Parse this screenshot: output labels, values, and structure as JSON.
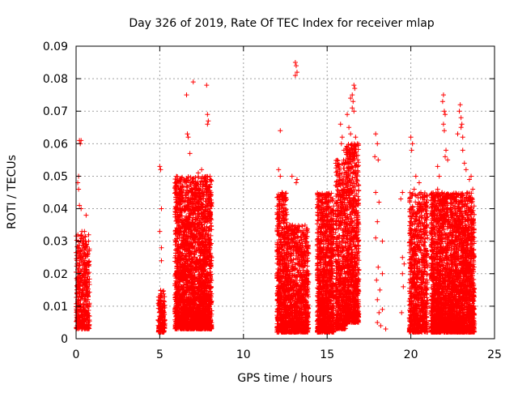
{
  "chart_data": {
    "type": "scatter",
    "title": "Day 326 of 2019, Rate Of TEC Index for receiver mlap",
    "xlabel": "GPS time / hours",
    "ylabel": "ROTI / TECUs",
    "xlim": [
      0,
      25
    ],
    "ylim": [
      0,
      0.09
    ],
    "xticks": [
      "0",
      "5",
      "10",
      "15",
      "20",
      "25"
    ],
    "yticks": [
      "0",
      "0.01",
      "0.02",
      "0.03",
      "0.04",
      "0.05",
      "0.06",
      "0.07",
      "0.08",
      "0.09"
    ],
    "grid": true,
    "marker": "+",
    "color": "#ff0000",
    "series": [
      {
        "points": [
          [
            0.1,
            0.048
          ],
          [
            0.15,
            0.05
          ],
          [
            0.2,
            0.061
          ],
          [
            0.25,
            0.06
          ],
          [
            0.3,
            0.061
          ],
          [
            0.15,
            0.046
          ],
          [
            0.2,
            0.041
          ],
          [
            0.3,
            0.04
          ],
          [
            0.35,
            0.033
          ],
          [
            0.4,
            0.031
          ],
          [
            0.5,
            0.033
          ],
          [
            0.5,
            0.028
          ],
          [
            0.6,
            0.038
          ],
          [
            0.6,
            0.015
          ],
          [
            0.7,
            0.01
          ],
          [
            5.0,
            0.053
          ],
          [
            5.05,
            0.052
          ],
          [
            5.1,
            0.04
          ],
          [
            5.0,
            0.033
          ],
          [
            5.1,
            0.028
          ],
          [
            5.1,
            0.024
          ],
          [
            6.6,
            0.075
          ],
          [
            6.65,
            0.063
          ],
          [
            6.7,
            0.062
          ],
          [
            7.0,
            0.079
          ],
          [
            7.8,
            0.078
          ],
          [
            7.85,
            0.069
          ],
          [
            7.9,
            0.067
          ],
          [
            7.85,
            0.066
          ],
          [
            6.8,
            0.057
          ],
          [
            7.3,
            0.051
          ],
          [
            7.5,
            0.052
          ],
          [
            8.0,
            0.05
          ],
          [
            12.2,
            0.064
          ],
          [
            12.1,
            0.052
          ],
          [
            12.2,
            0.05
          ],
          [
            12.3,
            0.045
          ],
          [
            12.9,
            0.05
          ],
          [
            13.2,
            0.049
          ],
          [
            13.15,
            0.048
          ],
          [
            13.1,
            0.085
          ],
          [
            13.15,
            0.084
          ],
          [
            13.2,
            0.082
          ],
          [
            13.1,
            0.081
          ],
          [
            15.8,
            0.066
          ],
          [
            15.9,
            0.062
          ],
          [
            15.85,
            0.06
          ],
          [
            16.0,
            0.058
          ],
          [
            16.4,
            0.074
          ],
          [
            16.5,
            0.075
          ],
          [
            16.55,
            0.073
          ],
          [
            16.6,
            0.078
          ],
          [
            16.65,
            0.077
          ],
          [
            16.5,
            0.071
          ],
          [
            16.6,
            0.07
          ],
          [
            16.2,
            0.069
          ],
          [
            16.3,
            0.065
          ],
          [
            16.4,
            0.063
          ],
          [
            16.7,
            0.062
          ],
          [
            16.8,
            0.06
          ],
          [
            16.5,
            0.055
          ],
          [
            16.3,
            0.05
          ],
          [
            17.9,
            0.063
          ],
          [
            18.0,
            0.06
          ],
          [
            17.85,
            0.056
          ],
          [
            18.05,
            0.055
          ],
          [
            17.9,
            0.045
          ],
          [
            18.1,
            0.042
          ],
          [
            18.0,
            0.036
          ],
          [
            17.9,
            0.031
          ],
          [
            18.3,
            0.03
          ],
          [
            18.05,
            0.022
          ],
          [
            18.3,
            0.02
          ],
          [
            17.95,
            0.018
          ],
          [
            18.15,
            0.015
          ],
          [
            18.0,
            0.012
          ],
          [
            18.3,
            0.009
          ],
          [
            18.1,
            0.008
          ],
          [
            18.0,
            0.005
          ],
          [
            18.2,
            0.004
          ],
          [
            18.5,
            0.003
          ],
          [
            19.4,
            0.043
          ],
          [
            19.5,
            0.045
          ],
          [
            19.5,
            0.025
          ],
          [
            19.6,
            0.023
          ],
          [
            19.5,
            0.02
          ],
          [
            19.55,
            0.016
          ],
          [
            19.45,
            0.008
          ],
          [
            20.0,
            0.062
          ],
          [
            20.1,
            0.06
          ],
          [
            20.05,
            0.058
          ],
          [
            20.2,
            0.046
          ],
          [
            20.3,
            0.05
          ],
          [
            20.5,
            0.048
          ],
          [
            20.6,
            0.045
          ],
          [
            21.6,
            0.053
          ],
          [
            21.7,
            0.05
          ],
          [
            21.6,
            0.046
          ],
          [
            21.7,
            0.044
          ],
          [
            21.8,
            0.043
          ],
          [
            21.9,
            0.073
          ],
          [
            21.95,
            0.075
          ],
          [
            22.0,
            0.07
          ],
          [
            21.95,
            0.066
          ],
          [
            22.0,
            0.064
          ],
          [
            22.05,
            0.069
          ],
          [
            22.1,
            0.058
          ],
          [
            22.05,
            0.056
          ],
          [
            22.2,
            0.055
          ],
          [
            22.8,
            0.063
          ],
          [
            22.9,
            0.07
          ],
          [
            22.95,
            0.072
          ],
          [
            23.0,
            0.068
          ],
          [
            23.0,
            0.065
          ],
          [
            23.05,
            0.066
          ],
          [
            23.1,
            0.062
          ],
          [
            23.1,
            0.058
          ],
          [
            23.2,
            0.054
          ],
          [
            23.3,
            0.052
          ],
          [
            23.5,
            0.049
          ],
          [
            23.6,
            0.05
          ],
          [
            23.7,
            0.046
          ]
        ]
      }
    ],
    "dense_clusters": [
      {
        "x_range": [
          0.0,
          0.8
        ],
        "y_range": [
          0.003,
          0.032
        ],
        "count": 450
      },
      {
        "x_range": [
          4.9,
          5.3
        ],
        "y_range": [
          0.002,
          0.015
        ],
        "count": 160
      },
      {
        "x_range": [
          5.9,
          8.1
        ],
        "y_range": [
          0.003,
          0.05
        ],
        "count": 2600
      },
      {
        "x_range": [
          12.0,
          12.6
        ],
        "y_range": [
          0.002,
          0.045
        ],
        "count": 650
      },
      {
        "x_range": [
          12.6,
          13.9
        ],
        "y_range": [
          0.002,
          0.035
        ],
        "count": 1000
      },
      {
        "x_range": [
          14.4,
          15.4
        ],
        "y_range": [
          0.002,
          0.045
        ],
        "count": 1100
      },
      {
        "x_range": [
          15.5,
          16.1
        ],
        "y_range": [
          0.003,
          0.055
        ],
        "count": 600
      },
      {
        "x_range": [
          16.1,
          16.9
        ],
        "y_range": [
          0.005,
          0.06
        ],
        "count": 900
      },
      {
        "x_range": [
          19.9,
          21.0
        ],
        "y_range": [
          0.002,
          0.045
        ],
        "count": 900
      },
      {
        "x_range": [
          21.2,
          23.8
        ],
        "y_range": [
          0.002,
          0.045
        ],
        "count": 3000
      }
    ]
  }
}
